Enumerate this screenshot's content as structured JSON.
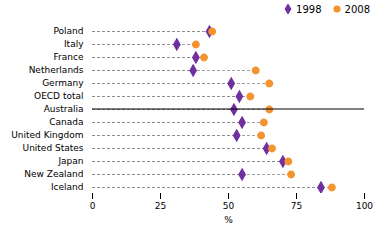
{
  "chart_data": {
    "type": "dot",
    "orientation": "horizontal",
    "categories": [
      "Poland",
      "Italy",
      "France",
      "Netherlands",
      "Germany",
      "OECD total",
      "Australia",
      "Canada",
      "United Kingdom",
      "United States",
      "Japan",
      "New Zealand",
      "Iceland"
    ],
    "series": [
      {
        "name": "1998",
        "color": "#7030a0",
        "marker": "diamond",
        "values": [
          43,
          31,
          38,
          37,
          51,
          54,
          52,
          55,
          53,
          64,
          70,
          55,
          84
        ]
      },
      {
        "name": "2008",
        "color": "#f4932f",
        "marker": "circle",
        "values": [
          44,
          38,
          41,
          60,
          65,
          58,
          65,
          63,
          62,
          66,
          72,
          73,
          88
        ]
      }
    ],
    "xlabel": "%",
    "xlim": [
      0,
      100
    ],
    "xticks": [
      0,
      25,
      50,
      75,
      100
    ],
    "grid": false,
    "legend": "upper right"
  }
}
